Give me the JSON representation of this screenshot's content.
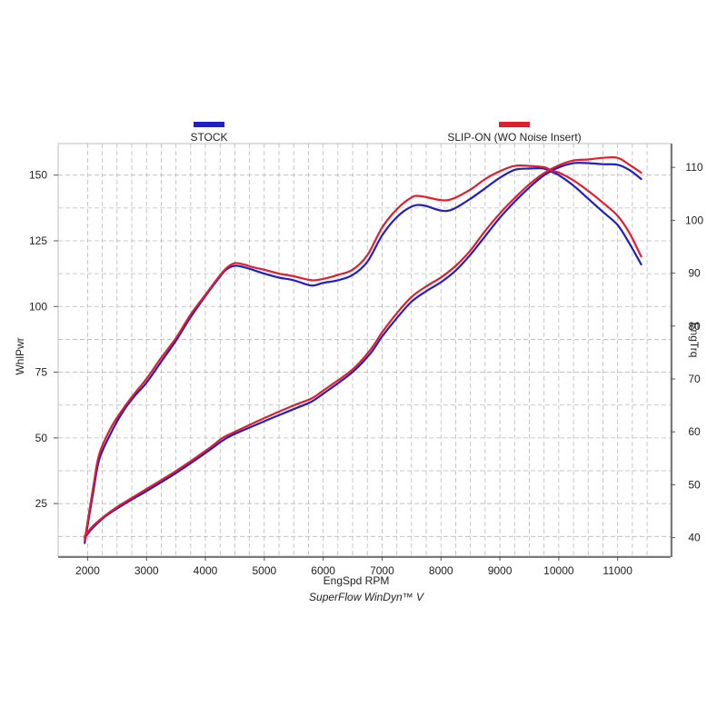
{
  "chart_data": {
    "type": "line",
    "xlabel": "EngSpd  RPM",
    "ylabel_left": "WhlPwr",
    "ylabel_right": "EngTrq",
    "footer": "SuperFlow WinDyn™ V",
    "x_range": [
      1500,
      11900
    ],
    "y_left_range": [
      5,
      162
    ],
    "y_right_range": [
      36.5,
      114.5
    ],
    "x_ticks": [
      2000,
      3000,
      4000,
      5000,
      6000,
      7000,
      8000,
      9000,
      10000,
      11000
    ],
    "y_left_ticks": [
      25,
      50,
      75,
      100,
      125,
      150
    ],
    "y_right_ticks": [
      40,
      50,
      60,
      70,
      80,
      90,
      100,
      110
    ],
    "grid": true,
    "legend_position": "top",
    "series": [
      {
        "name": "STOCK",
        "color": "#1f1fc8",
        "power": [
          [
            1950,
            10
          ],
          [
            2100,
            30
          ],
          [
            2200,
            42
          ],
          [
            2400,
            52
          ],
          [
            2600,
            60
          ],
          [
            2800,
            66
          ],
          [
            3000,
            71
          ],
          [
            3250,
            79
          ],
          [
            3500,
            87
          ],
          [
            3750,
            96
          ],
          [
            4000,
            104
          ],
          [
            4200,
            110
          ],
          [
            4350,
            114
          ],
          [
            4500,
            115.5
          ],
          [
            4650,
            115
          ],
          [
            4800,
            114
          ],
          [
            5000,
            112.5
          ],
          [
            5250,
            111
          ],
          [
            5500,
            110
          ],
          [
            5800,
            108
          ],
          [
            6000,
            109
          ],
          [
            6250,
            110
          ],
          [
            6500,
            112
          ],
          [
            6750,
            117
          ],
          [
            7000,
            127
          ],
          [
            7250,
            134
          ],
          [
            7500,
            138
          ],
          [
            7700,
            138.5
          ],
          [
            8000,
            136.5
          ],
          [
            8200,
            137
          ],
          [
            8500,
            141
          ],
          [
            8750,
            145
          ],
          [
            9000,
            149
          ],
          [
            9250,
            152
          ],
          [
            9500,
            152.5
          ],
          [
            9750,
            152.5
          ],
          [
            9900,
            151
          ],
          [
            10000,
            150
          ],
          [
            10250,
            146
          ],
          [
            10500,
            141
          ],
          [
            10750,
            136
          ],
          [
            11000,
            131
          ],
          [
            11200,
            124
          ],
          [
            11400,
            116
          ]
        ],
        "torque": [
          [
            1950,
            40
          ],
          [
            2100,
            42
          ],
          [
            2300,
            44
          ],
          [
            2500,
            45.5
          ],
          [
            2750,
            47.2
          ],
          [
            3000,
            48.8
          ],
          [
            3500,
            52.2
          ],
          [
            4000,
            56
          ],
          [
            4300,
            58.4
          ],
          [
            4500,
            59.6
          ],
          [
            5000,
            62
          ],
          [
            5500,
            64.3
          ],
          [
            5800,
            65.7
          ],
          [
            6000,
            67.2
          ],
          [
            6500,
            71.3
          ],
          [
            6800,
            74.8
          ],
          [
            7000,
            78
          ],
          [
            7250,
            81.5
          ],
          [
            7500,
            84.6
          ],
          [
            7750,
            86.6
          ],
          [
            8000,
            88.3
          ],
          [
            8250,
            90.5
          ],
          [
            8500,
            93.5
          ],
          [
            8750,
            97
          ],
          [
            9000,
            100.5
          ],
          [
            9250,
            103.5
          ],
          [
            9500,
            106.2
          ],
          [
            9750,
            108.5
          ],
          [
            10000,
            110
          ],
          [
            10250,
            110.8
          ],
          [
            10500,
            110.8
          ],
          [
            10750,
            110.6
          ],
          [
            11000,
            110.5
          ],
          [
            11200,
            109.5
          ],
          [
            11400,
            107.8
          ]
        ]
      },
      {
        "name": "SLIP-ON (WO Noise Insert)",
        "color": "#e01e2e",
        "power": [
          [
            1950,
            11
          ],
          [
            2100,
            32
          ],
          [
            2200,
            44
          ],
          [
            2400,
            54
          ],
          [
            2600,
            61
          ],
          [
            2800,
            67
          ],
          [
            3000,
            72.5
          ],
          [
            3250,
            80.5
          ],
          [
            3500,
            88
          ],
          [
            3750,
            97
          ],
          [
            4000,
            104.5
          ],
          [
            4200,
            110.5
          ],
          [
            4350,
            114.5
          ],
          [
            4500,
            116.5
          ],
          [
            4650,
            116
          ],
          [
            4800,
            115
          ],
          [
            5000,
            114
          ],
          [
            5250,
            112.5
          ],
          [
            5500,
            111.5
          ],
          [
            5800,
            110
          ],
          [
            6000,
            110.5
          ],
          [
            6250,
            112
          ],
          [
            6500,
            114
          ],
          [
            6750,
            119.5
          ],
          [
            7000,
            130
          ],
          [
            7250,
            137
          ],
          [
            7500,
            141.5
          ],
          [
            7650,
            142
          ],
          [
            8000,
            140.5
          ],
          [
            8200,
            141
          ],
          [
            8500,
            144.5
          ],
          [
            8750,
            148.5
          ],
          [
            9000,
            151.5
          ],
          [
            9250,
            153.5
          ],
          [
            9500,
            153.5
          ],
          [
            9750,
            153
          ],
          [
            9900,
            151.5
          ],
          [
            10000,
            151
          ],
          [
            10250,
            148
          ],
          [
            10500,
            144
          ],
          [
            10750,
            139.5
          ],
          [
            11000,
            134.5
          ],
          [
            11200,
            128
          ],
          [
            11400,
            119
          ]
        ],
        "torque": [
          [
            1950,
            40.3
          ],
          [
            2100,
            42.3
          ],
          [
            2300,
            44.2
          ],
          [
            2500,
            45.8
          ],
          [
            2750,
            47.5
          ],
          [
            3000,
            49.2
          ],
          [
            3500,
            52.6
          ],
          [
            4000,
            56.4
          ],
          [
            4300,
            58.9
          ],
          [
            4500,
            60
          ],
          [
            5000,
            62.6
          ],
          [
            5500,
            65
          ],
          [
            5800,
            66.3
          ],
          [
            6000,
            67.8
          ],
          [
            6500,
            71.8
          ],
          [
            6800,
            75.5
          ],
          [
            7000,
            78.8
          ],
          [
            7250,
            82.4
          ],
          [
            7500,
            85.5
          ],
          [
            7750,
            87.5
          ],
          [
            8000,
            89.2
          ],
          [
            8250,
            91.4
          ],
          [
            8500,
            94.3
          ],
          [
            8750,
            98
          ],
          [
            9000,
            101.3
          ],
          [
            9250,
            104.2
          ],
          [
            9500,
            106.8
          ],
          [
            9750,
            108.9
          ],
          [
            10000,
            110.4
          ],
          [
            10250,
            111.3
          ],
          [
            10500,
            111.5
          ],
          [
            10750,
            111.8
          ],
          [
            11000,
            111.8
          ],
          [
            11200,
            110.5
          ],
          [
            11400,
            109
          ]
        ]
      }
    ]
  }
}
